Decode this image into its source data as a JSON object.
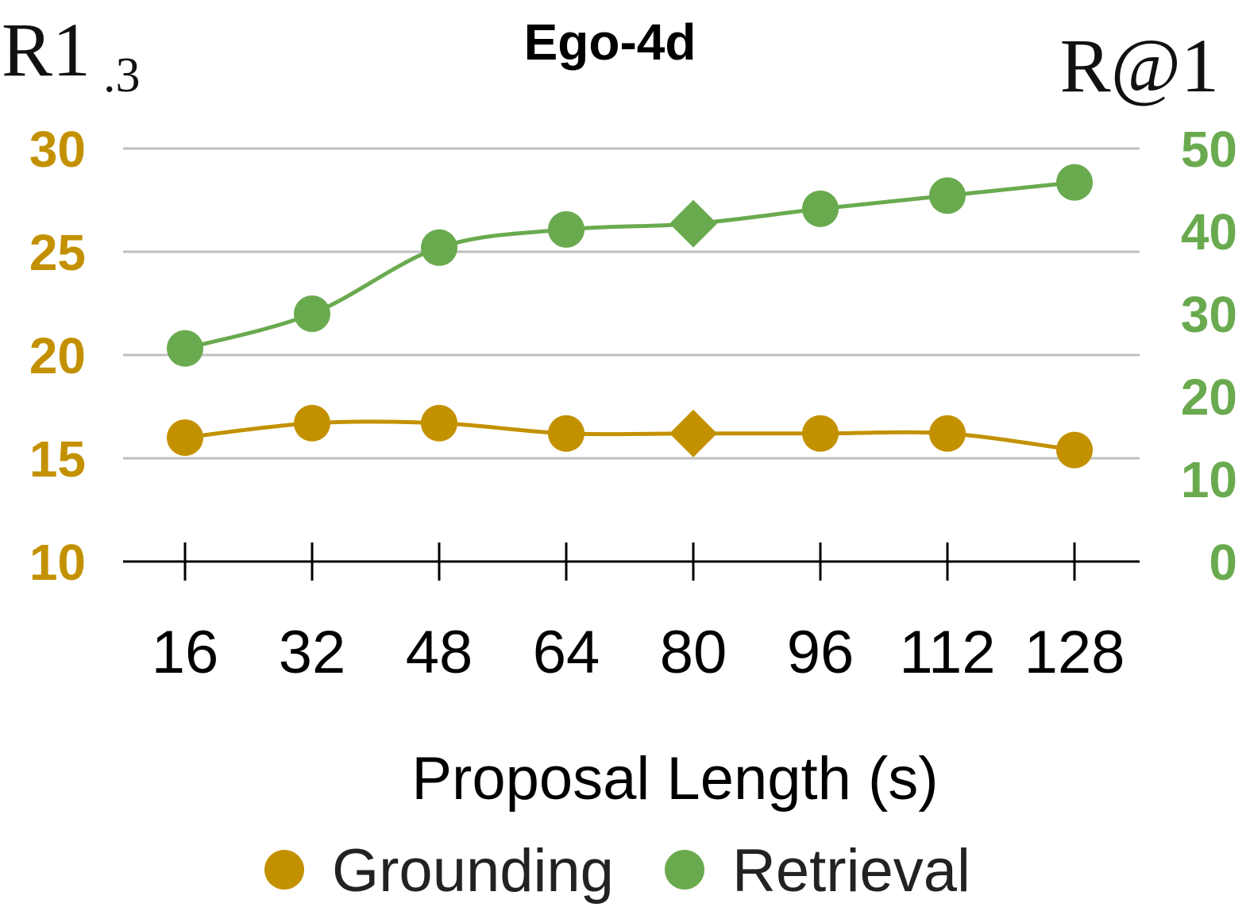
{
  "chart_data": {
    "type": "line",
    "title": "Ego-4d",
    "xlabel": "Proposal Length (s)",
    "categories": [
      "16",
      "32",
      "48",
      "64",
      "80",
      "96",
      "112",
      "128"
    ],
    "left_axis": {
      "label_main": "R1",
      "label_sub": ".3",
      "ticks": [
        "10",
        "15",
        "20",
        "25",
        "30"
      ],
      "ylim": [
        10,
        30
      ]
    },
    "right_axis": {
      "label": "R@1",
      "ticks": [
        "0",
        "10",
        "20",
        "30",
        "40",
        "50"
      ],
      "ylim": [
        0,
        50
      ]
    },
    "grid": true,
    "highlight_index": 4,
    "series": [
      {
        "name": "Grounding",
        "axis": "left",
        "color": "#C39100",
        "values": [
          16.0,
          16.7,
          16.7,
          16.2,
          16.2,
          16.2,
          16.2,
          15.4
        ]
      },
      {
        "name": "Retrieval",
        "axis": "right",
        "color": "#6AAA4F",
        "values": [
          25.8,
          30.0,
          38.0,
          40.2,
          40.9,
          42.7,
          44.3,
          45.9
        ]
      }
    ],
    "legend": {
      "position": "bottom",
      "items": [
        "Grounding",
        "Retrieval"
      ]
    }
  }
}
